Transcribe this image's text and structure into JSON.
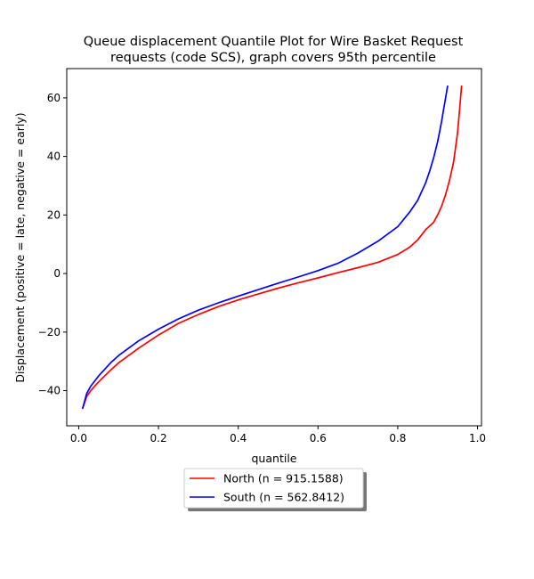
{
  "chart_data": {
    "type": "line",
    "title": [
      "Queue displacement Quantile Plot for Wire Basket Request",
      "requests (code SCS), graph covers 95th percentile"
    ],
    "xlabel": "quantile",
    "ylabel": "Displacement (positive = late, negative = early)",
    "xlim": [
      -0.03,
      1.01
    ],
    "ylim": [
      -52,
      70
    ],
    "xticks": [
      0.0,
      0.2,
      0.4,
      0.6,
      0.8,
      1.0
    ],
    "xtick_labels": [
      "0.0",
      "0.2",
      "0.4",
      "0.6",
      "0.8",
      "1.0"
    ],
    "yticks": [
      -40,
      -20,
      0,
      20,
      40,
      60
    ],
    "ytick_labels": [
      "−40",
      "−20",
      "0",
      "20",
      "40",
      "60"
    ],
    "grid": false,
    "legend_position": "below-center",
    "series": [
      {
        "name": "North (n = 915.1588)",
        "color": "#ff0000",
        "x": [
          0.01,
          0.02,
          0.03,
          0.05,
          0.08,
          0.1,
          0.15,
          0.2,
          0.25,
          0.3,
          0.35,
          0.4,
          0.45,
          0.5,
          0.55,
          0.6,
          0.65,
          0.7,
          0.75,
          0.8,
          0.83,
          0.85,
          0.87,
          0.89,
          0.9,
          0.91,
          0.92,
          0.93,
          0.94,
          0.95,
          0.955,
          0.96
        ],
        "y": [
          -46,
          -42,
          -40,
          -37,
          -33,
          -30.5,
          -25.5,
          -21,
          -17,
          -14,
          -11.3,
          -9,
          -7,
          -5,
          -3.2,
          -1.5,
          0.3,
          2,
          3.8,
          6.5,
          9,
          11.5,
          15,
          17.5,
          20,
          23,
          27,
          32,
          38,
          48,
          56,
          64
        ]
      },
      {
        "name": "South (n = 562.8412)",
        "color": "#0000ff",
        "x": [
          0.01,
          0.02,
          0.03,
          0.05,
          0.08,
          0.1,
          0.15,
          0.2,
          0.25,
          0.3,
          0.35,
          0.4,
          0.45,
          0.5,
          0.55,
          0.6,
          0.65,
          0.7,
          0.75,
          0.8,
          0.83,
          0.85,
          0.87,
          0.88,
          0.89,
          0.9,
          0.905,
          0.91,
          0.915,
          0.92,
          0.925
        ],
        "y": [
          -46,
          -41,
          -38.5,
          -35,
          -30.5,
          -28,
          -23,
          -19,
          -15.5,
          -12.5,
          -10,
          -7.7,
          -5.5,
          -3.3,
          -1.2,
          1,
          3.5,
          7,
          11,
          16,
          21,
          25,
          31,
          35,
          39.5,
          45,
          48.5,
          52,
          56,
          60,
          64
        ]
      }
    ]
  }
}
